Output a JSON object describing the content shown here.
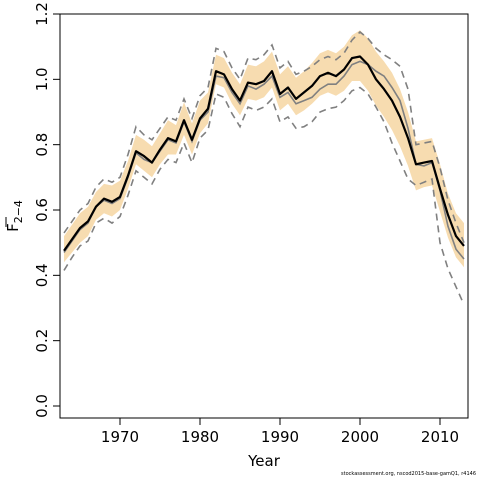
{
  "chart_data": {
    "type": "line",
    "xlabel": "Year",
    "ylabel_main": "F",
    "ylabel_sub": "2−4",
    "xlim": [
      1962.5,
      2013.5
    ],
    "ylim": [
      0,
      1.2
    ],
    "xticks": [
      1970,
      1980,
      1990,
      2000,
      2010
    ],
    "yticks": [
      "0.0",
      "0.2",
      "0.4",
      "0.6",
      "0.8",
      "1.0",
      "1.2"
    ],
    "x": [
      1963,
      1964,
      1965,
      1966,
      1967,
      1968,
      1969,
      1970,
      1971,
      1972,
      1973,
      1974,
      1975,
      1976,
      1977,
      1978,
      1979,
      1980,
      1981,
      1982,
      1983,
      1984,
      1985,
      1986,
      1987,
      1988,
      1989,
      1990,
      1991,
      1992,
      1993,
      1994,
      1995,
      1996,
      1997,
      1998,
      1999,
      2000,
      2001,
      2002,
      2003,
      2004,
      2005,
      2006,
      2007,
      2008,
      2009,
      2010,
      2011,
      2012,
      2013
    ],
    "series": [
      {
        "role": "estimate",
        "values": [
          0.475,
          0.51,
          0.545,
          0.565,
          0.61,
          0.635,
          0.625,
          0.64,
          0.705,
          0.78,
          0.765,
          0.745,
          0.785,
          0.82,
          0.81,
          0.875,
          0.815,
          0.88,
          0.91,
          1.025,
          1.015,
          0.97,
          0.935,
          0.99,
          0.985,
          0.995,
          1.025,
          0.955,
          0.975,
          0.94,
          0.96,
          0.98,
          1.01,
          1.02,
          1.01,
          1.03,
          1.065,
          1.07,
          1.045,
          1.0,
          0.97,
          0.935,
          0.885,
          0.82,
          0.74,
          0.745,
          0.75,
          0.665,
          0.585,
          0.52,
          0.49
        ],
        "color": "#000000"
      },
      {
        "role": "band",
        "lower": [
          0.44,
          0.47,
          0.5,
          0.52,
          0.57,
          0.59,
          0.58,
          0.6,
          0.665,
          0.74,
          0.72,
          0.7,
          0.74,
          0.77,
          0.77,
          0.83,
          0.77,
          0.835,
          0.865,
          0.985,
          0.975,
          0.925,
          0.89,
          0.94,
          0.935,
          0.945,
          0.975,
          0.905,
          0.925,
          0.89,
          0.905,
          0.925,
          0.95,
          0.96,
          0.95,
          0.965,
          0.995,
          0.995,
          0.965,
          0.92,
          0.885,
          0.845,
          0.795,
          0.735,
          0.66,
          0.67,
          0.675,
          0.595,
          0.515,
          0.455,
          0.425
        ],
        "upper": [
          0.52,
          0.555,
          0.59,
          0.61,
          0.655,
          0.68,
          0.675,
          0.69,
          0.75,
          0.83,
          0.815,
          0.795,
          0.835,
          0.875,
          0.86,
          0.93,
          0.865,
          0.935,
          0.96,
          1.075,
          1.065,
          1.02,
          0.985,
          1.045,
          1.04,
          1.055,
          1.085,
          1.015,
          1.04,
          1.005,
          1.025,
          1.05,
          1.08,
          1.09,
          1.08,
          1.1,
          1.135,
          1.15,
          1.125,
          1.085,
          1.055,
          1.02,
          0.97,
          0.9,
          0.81,
          0.815,
          0.82,
          0.74,
          0.65,
          0.59,
          0.56
        ],
        "color": "#f7dcb0"
      },
      {
        "role": "previous-estimate",
        "values": [
          0.47,
          0.505,
          0.54,
          0.56,
          0.61,
          0.63,
          0.62,
          0.635,
          0.7,
          0.775,
          0.755,
          0.745,
          0.78,
          0.815,
          0.805,
          0.87,
          0.81,
          0.875,
          0.9,
          1.01,
          1.005,
          0.96,
          0.925,
          0.98,
          0.97,
          0.985,
          1.01,
          0.945,
          0.96,
          0.925,
          0.935,
          0.945,
          0.97,
          0.985,
          0.985,
          1.01,
          1.045,
          1.055,
          1.045,
          1.025,
          1.01,
          0.975,
          0.935,
          0.85,
          0.74,
          0.735,
          0.745,
          0.66,
          0.55,
          0.48,
          0.45
        ],
        "color": "#808080"
      },
      {
        "role": "previous-lower",
        "values": [
          0.415,
          0.455,
          0.49,
          0.505,
          0.56,
          0.575,
          0.56,
          0.58,
          0.645,
          0.72,
          0.7,
          0.68,
          0.725,
          0.755,
          0.745,
          0.805,
          0.745,
          0.82,
          0.845,
          0.955,
          0.945,
          0.895,
          0.855,
          0.915,
          0.905,
          0.915,
          0.94,
          0.87,
          0.885,
          0.85,
          0.855,
          0.87,
          0.9,
          0.91,
          0.915,
          0.935,
          0.965,
          0.975,
          0.955,
          0.915,
          0.87,
          0.805,
          0.75,
          0.695,
          0.675,
          0.685,
          0.695,
          0.5,
          0.42,
          0.365,
          0.31
        ],
        "color": "#808080"
      },
      {
        "role": "previous-upper",
        "values": [
          0.53,
          0.565,
          0.6,
          0.62,
          0.67,
          0.695,
          0.685,
          0.7,
          0.77,
          0.855,
          0.83,
          0.815,
          0.85,
          0.885,
          0.875,
          0.94,
          0.88,
          0.95,
          0.975,
          1.095,
          1.085,
          1.035,
          1.0,
          1.065,
          1.06,
          1.075,
          1.105,
          1.035,
          1.055,
          1.015,
          1.025,
          1.04,
          1.06,
          1.07,
          1.06,
          1.08,
          1.12,
          1.145,
          1.125,
          1.095,
          1.075,
          1.06,
          1.04,
          0.97,
          0.8,
          0.805,
          0.81,
          0.73,
          0.63,
          0.56,
          0.5
        ],
        "color": "#808080"
      }
    ]
  },
  "footnote": "stockassessment.org,  nscod2015-base-gamQ1,  r4146"
}
